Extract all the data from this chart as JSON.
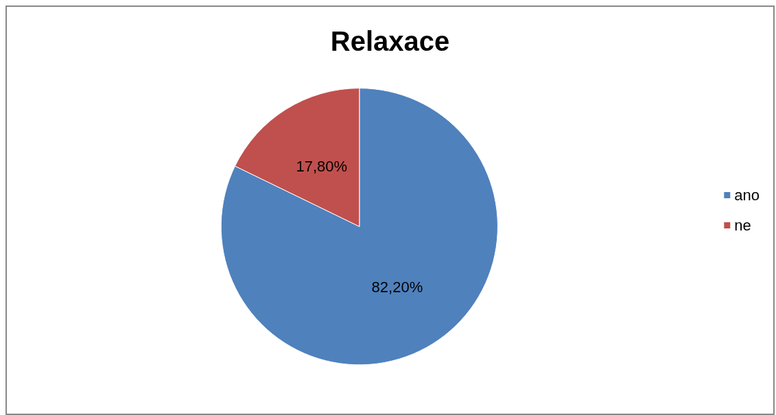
{
  "chart_data": {
    "type": "pie",
    "title": "Relaxace",
    "categories": [
      "ano",
      "ne"
    ],
    "values": [
      82.2,
      17.8
    ],
    "colors": [
      "#4f81bd",
      "#c0504d"
    ],
    "value_labels": [
      "82,20%",
      "17,80%"
    ],
    "legend": "right"
  }
}
